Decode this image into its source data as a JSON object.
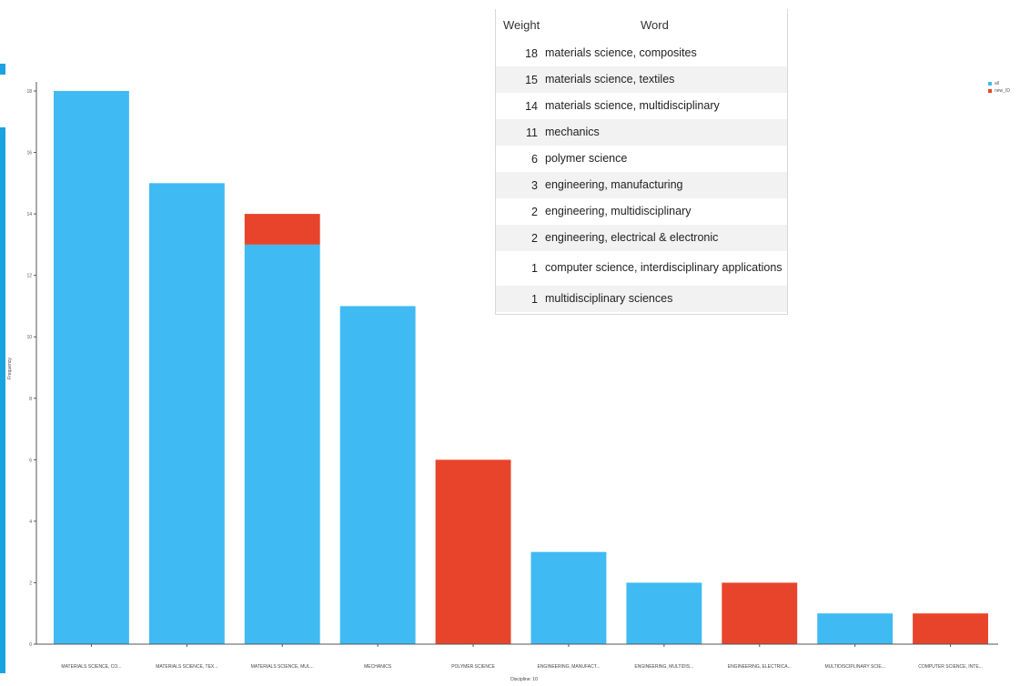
{
  "chart_data": {
    "type": "bar",
    "stacked": true,
    "categories": [
      "MATERIALS SCIENCE, CO...",
      "MATERIALS SCIENCE, TEX...",
      "MATERIALS SCIENCE, MUL...",
      "MECHANICS",
      "POLYMER SCIENCE",
      "ENGINEERING, MANUFACT...",
      "ENGINEERING, MULTIDIS...",
      "ENGINEERING, ELECTRICA...",
      "MULTIDISCIPLINARY SCIE...",
      "COMPUTER SCIENCE, INTE..."
    ],
    "series": [
      {
        "name": "all",
        "color": "#3fbaf2",
        "values": [
          18,
          15,
          13,
          11,
          0,
          3,
          2,
          0,
          1,
          0
        ]
      },
      {
        "name": "new_ID",
        "color": "#e8442b",
        "values": [
          0,
          0,
          1,
          0,
          6,
          0,
          0,
          2,
          0,
          1
        ]
      }
    ],
    "ylim": [
      0,
      18
    ],
    "yticks": [
      0,
      2,
      4,
      6,
      8,
      10,
      12,
      14,
      16,
      18
    ],
    "xlabel": "Discipline: 10",
    "ylabel": "Frequency",
    "legend_position": "top-right",
    "grid": false
  },
  "table": {
    "headers": {
      "weight": "Weight",
      "word": "Word"
    },
    "rows": [
      {
        "weight": "18",
        "word": "materials science, composites"
      },
      {
        "weight": "15",
        "word": "materials science, textiles"
      },
      {
        "weight": "14",
        "word": "materials science, multidisciplinary"
      },
      {
        "weight": "11",
        "word": "mechanics"
      },
      {
        "weight": "6",
        "word": "polymer science"
      },
      {
        "weight": "3",
        "word": "engineering, manufacturing"
      },
      {
        "weight": "2",
        "word": "engineering, multidisciplinary"
      },
      {
        "weight": "2",
        "word": "engineering, electrical & electronic"
      },
      {
        "weight": "1",
        "word": "computer science, interdisciplinary applications"
      },
      {
        "weight": "1",
        "word": "multidisciplinary sciences"
      }
    ]
  }
}
